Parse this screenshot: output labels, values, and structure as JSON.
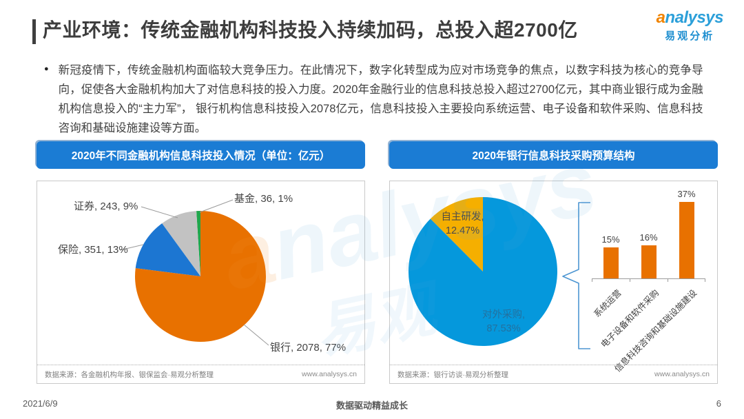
{
  "header": {
    "title": "产业环境：传统金融机构科技投入持续加码，总投入超2700亿",
    "logo": {
      "name": "analysys",
      "name_cn": "易观分析"
    }
  },
  "intro": {
    "bullet_text": "新冠疫情下，传统金融机构面临较大竞争压力。在此情况下，数字化转型成为应对市场竞争的焦点，以数字科技为核心的竞争导向，促使各大金融机构加大了对信息科技的投入力度。2020年金融行业的信息科技总投入超过2700亿元，其中商业银行成为金融机构信息投入的“主力军”， 银行机构信息科技投入2078亿元，信息科技投入主要投向系统运营、电子设备和软件采购、信息科技咨询和基础设施建设等方面。"
  },
  "panels": {
    "left": {
      "title": "2020年不同金融机构信息科技投入情况（单位：亿元）",
      "source": "数据来源：各金融机构年报、银保监会·易观分析整理",
      "website": "www.analysys.cn"
    },
    "right": {
      "title": "2020年银行信息科技采购预算结构",
      "source": "数据来源：银行访谈·易观分析整理",
      "website": "www.analysys.cn"
    }
  },
  "chart_data": [
    {
      "type": "pie",
      "title": "2020年不同金融机构信息科技投入情况",
      "unit": "亿元",
      "legend_position": "callout-labels",
      "segments": [
        {
          "label": "银行",
          "value": 2078,
          "percent": 77,
          "color": "#E87100",
          "display": "银行, 2078, 77%"
        },
        {
          "label": "保险",
          "value": 351,
          "percent": 13,
          "color": "#1C76D2",
          "display": "保险, 351, 13%"
        },
        {
          "label": "证券",
          "value": 243,
          "percent": 9,
          "color": "#C2C2C2",
          "display": "证券, 243, 9%"
        },
        {
          "label": "基金",
          "value": 36,
          "percent": 1,
          "color": "#21A64B",
          "display": "基金, 36, 1%"
        }
      ]
    },
    {
      "type": "pie",
      "title": "2020年银行信息科技采购预算结构",
      "legend_position": "inside-labels",
      "segments": [
        {
          "label": "对外采购",
          "percent": 87.53,
          "color": "#0598DC",
          "display_label": "对外采购,",
          "display_value": "87.53%"
        },
        {
          "label": "自主研发",
          "percent": 12.47,
          "color": "#F5AF00",
          "display_label": "自主研发,",
          "display_value": "12.47%"
        }
      ]
    },
    {
      "type": "bar",
      "title": "对外采购结构",
      "categories": [
        "系统运营",
        "电子设备和软件采购",
        "信息科技咨询和基础设施建设"
      ],
      "values": [
        15,
        16,
        37
      ],
      "labels": [
        "15%",
        "16%",
        "37%"
      ],
      "unit": "%",
      "ylim": [
        0,
        40
      ],
      "bar_color": "#E87100",
      "grid": false
    }
  ],
  "watermark": {
    "en": "analysys",
    "cn": "易观"
  },
  "footer": {
    "date": "2021/6/9",
    "slogan": "数据驱动精益成长",
    "page": "6"
  }
}
